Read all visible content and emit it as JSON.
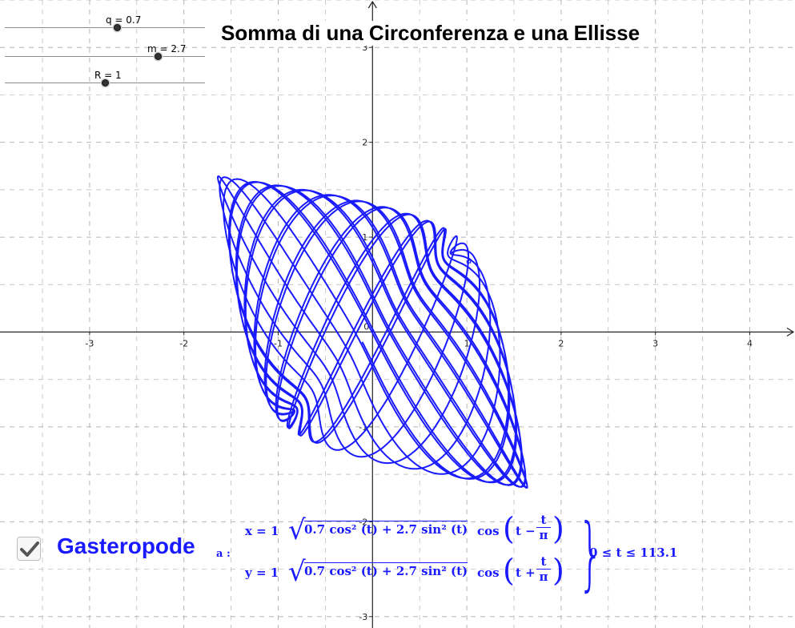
{
  "title": "Somma di una Circonferenza e una Ellisse",
  "sliders": [
    {
      "label": "q = 0.7",
      "value": 0.7
    },
    {
      "label": "m = 2.7",
      "value": 2.7
    },
    {
      "label": "R = 1",
      "value": 1
    }
  ],
  "axes": {
    "x_ticks": [
      "-3",
      "-2",
      "-1",
      "0",
      "1",
      "2",
      "3",
      "4"
    ],
    "y_ticks": [
      "3",
      "2",
      "1",
      "-1",
      "-2",
      "-3"
    ],
    "origin_label": "0",
    "x_range": [
      -3.95,
      4.48
    ],
    "y_range": [
      -3.12,
      3.5
    ],
    "grid": true,
    "grid_color": "#b5b5b5"
  },
  "curve": {
    "name": "a",
    "point_label": "a",
    "color": "#1a1aff",
    "q": 0.7,
    "m": 2.7,
    "R": 1,
    "t_min": 0,
    "t_max": 113.1
  },
  "checkbox": {
    "checked": true,
    "label": "Gasteropode"
  },
  "formula": {
    "name": "a :",
    "x_lhs": "x = 1",
    "y_lhs": "y = 1",
    "radicand_x": "0.7 cos² (t) + 2.7 sin² (t)",
    "radicand_y": "0.7 cos² (t) + 2.7 sin² (t)",
    "x_cos": "cos",
    "y_cos": "cos",
    "x_arg_t": "t −",
    "y_arg_t": "t +",
    "frac_num": "t",
    "frac_den": "π",
    "range": "0 ≤ t ≤ 113.1"
  }
}
